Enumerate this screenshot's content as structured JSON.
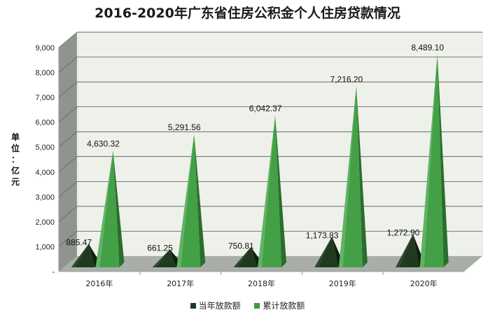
{
  "chart_data": {
    "type": "bar",
    "title": "2016-2020年广东省住房公积金个人住房贷款情况",
    "ylabel": "单位：亿元",
    "xlabel": "",
    "categories": [
      "2016年",
      "2017年",
      "2018年",
      "2019年",
      "2020年"
    ],
    "yticks": [
      "-",
      "1,000",
      "2,000",
      "3,000",
      "4,000",
      "5,000",
      "6,000",
      "7,000",
      "8,000",
      "9,000"
    ],
    "ylim": [
      0,
      9000
    ],
    "grid": true,
    "legend_position": "bottom",
    "series": [
      {
        "name": "当年放款额",
        "values": [
          885.47,
          661.25,
          750.81,
          1173.83,
          1272.9
        ],
        "labels": [
          "885.47",
          "661.25",
          "750.81",
          "1,173.83",
          "1,272.90"
        ],
        "color": "#1e3a1e"
      },
      {
        "name": "累计放款额",
        "values": [
          4630.32,
          5291.56,
          6042.37,
          7216.2,
          8489.1
        ],
        "labels": [
          "4,630.32",
          "5,291.56",
          "6,042.37",
          "7,216.20",
          "8,489.10"
        ],
        "color": "#3f9a3f"
      }
    ]
  }
}
